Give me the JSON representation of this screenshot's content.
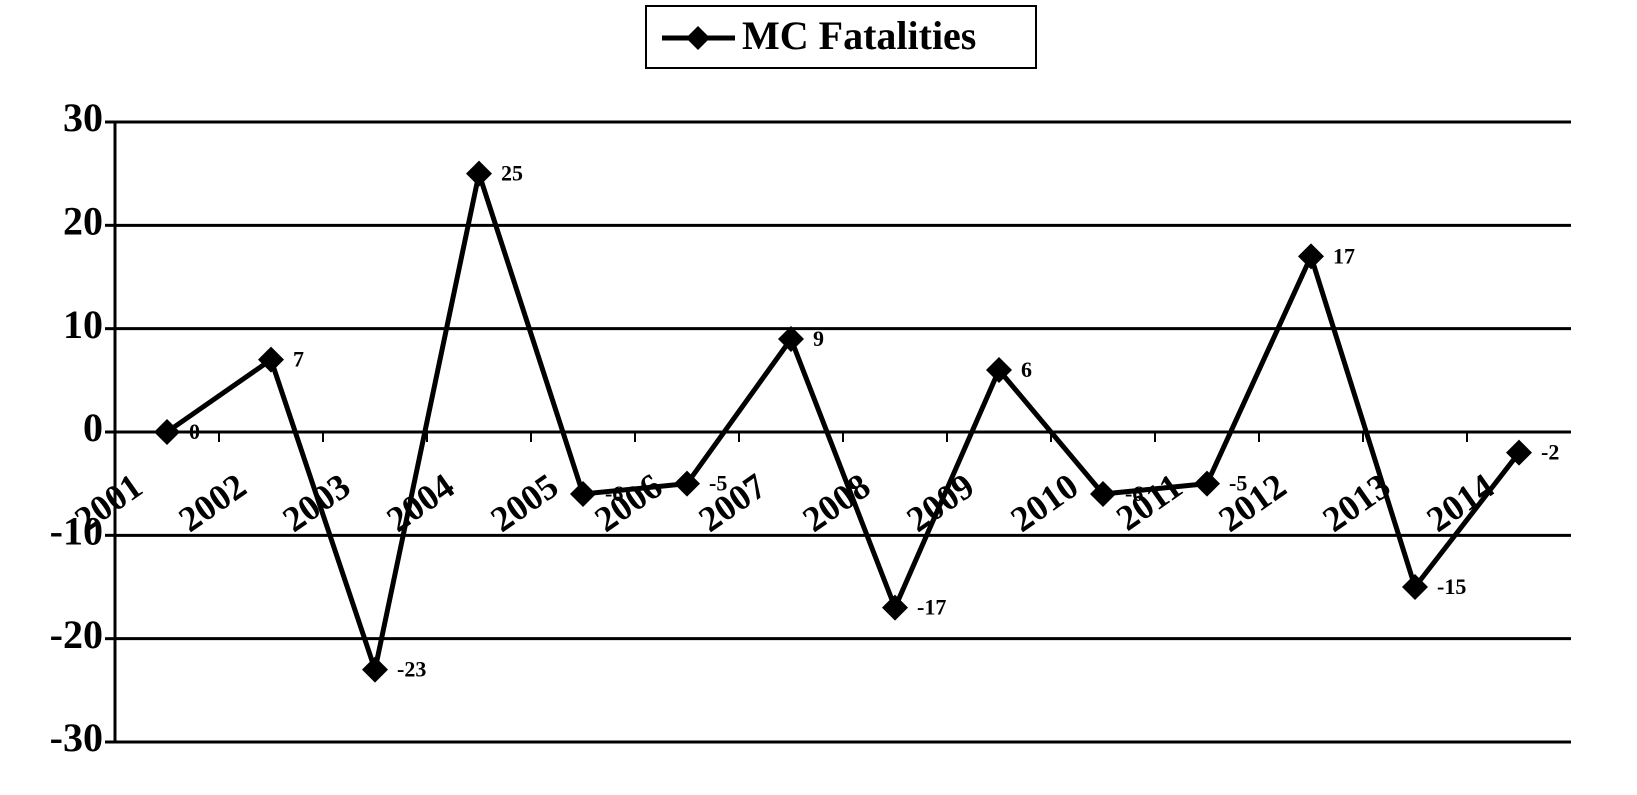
{
  "chart_data": {
    "type": "line",
    "categories": [
      "2001",
      "2002",
      "2003",
      "2004",
      "2005",
      "2006",
      "2007",
      "2008",
      "2009",
      "2010",
      "2011",
      "2012",
      "2013",
      "2014"
    ],
    "series": [
      {
        "name": "MC Fatalities",
        "color": "#000000",
        "values": [
          0,
          7,
          -23,
          25,
          -6,
          -5,
          9,
          -17,
          6,
          -6,
          -5,
          17,
          -15,
          -2
        ]
      }
    ],
    "ylim": [
      -30,
      30
    ],
    "yticks": [
      -30,
      -20,
      -10,
      0,
      10,
      20,
      30
    ],
    "grid": true,
    "legend": "top",
    "data_labels": true
  }
}
